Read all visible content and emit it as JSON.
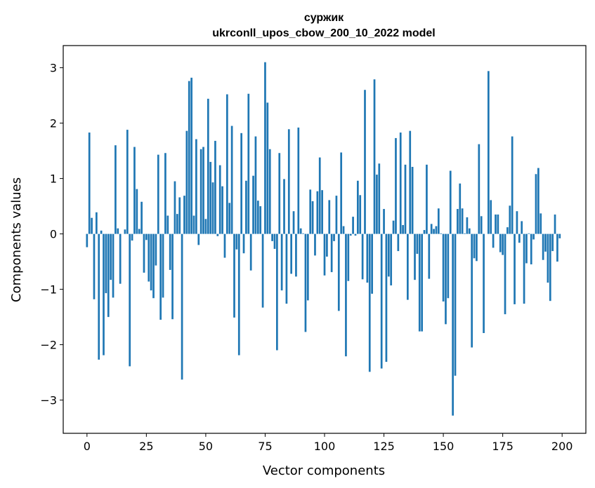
{
  "chart_data": {
    "type": "bar",
    "title": "суржик",
    "subtitle": "ukrconll_upos_cbow_200_10_2022 model",
    "xlabel": "Vector components",
    "ylabel": "Components values",
    "xlim": [
      -10,
      210
    ],
    "ylim": [
      -3.6,
      3.4
    ],
    "xticks": [
      0,
      25,
      50,
      75,
      100,
      125,
      150,
      175,
      200
    ],
    "yticks": [
      3,
      2,
      1,
      0,
      -1,
      -2,
      -3
    ],
    "ytick_labels": [
      "3",
      "2",
      "1",
      "0",
      "−1",
      "−2",
      "−3"
    ],
    "bar_color": "#1f77b4",
    "grid": false,
    "legend": "none",
    "series": [
      {
        "values": [
          -0.24,
          1.83,
          0.29,
          -1.18,
          0.39,
          -2.27,
          0.06,
          -2.19,
          -1.07,
          -1.5,
          -0.83,
          -1.15,
          1.6,
          0.1,
          -0.9,
          0.0,
          0.08,
          1.88,
          -2.39,
          -0.12,
          1.57,
          0.81,
          0.09,
          0.58,
          -0.7,
          -0.11,
          -0.86,
          -1.02,
          -1.16,
          -0.57,
          1.43,
          -1.55,
          -1.15,
          1.46,
          0.33,
          -0.65,
          -1.54,
          0.95,
          0.36,
          0.66,
          -2.63,
          0.69,
          1.86,
          2.76,
          2.82,
          0.33,
          1.71,
          -0.2,
          1.53,
          1.57,
          0.27,
          2.44,
          1.3,
          0.93,
          1.68,
          -0.04,
          1.24,
          0.86,
          -0.43,
          2.52,
          0.56,
          1.95,
          -1.51,
          -0.28,
          -2.19,
          1.82,
          -0.35,
          0.96,
          2.53,
          -0.66,
          1.05,
          1.76,
          0.6,
          0.5,
          -1.33,
          3.1,
          2.37,
          1.53,
          -0.13,
          -0.27,
          -2.1,
          1.46,
          -1.02,
          0.99,
          -1.26,
          1.89,
          -0.72,
          0.41,
          -0.77,
          1.92,
          0.1,
          0.01,
          -1.77,
          -1.2,
          0.8,
          0.59,
          -0.39,
          0.77,
          1.38,
          0.79,
          -0.75,
          -0.41,
          0.61,
          -0.69,
          -0.13,
          0.69,
          -1.39,
          1.47,
          0.14,
          -2.21,
          -0.85,
          -0.03,
          0.31,
          -0.03,
          0.96,
          0.7,
          -0.82,
          2.6,
          -0.88,
          -2.49,
          -1.08,
          2.79,
          1.07,
          1.27,
          -2.43,
          0.45,
          -2.31,
          -0.77,
          -0.93,
          0.24,
          1.73,
          -0.31,
          1.83,
          0.16,
          1.25,
          -1.19,
          1.86,
          1.21,
          -0.83,
          -0.36,
          -1.76,
          -1.76,
          0.07,
          1.25,
          -0.81,
          0.18,
          0.09,
          0.14,
          0.46,
          0.01,
          -1.22,
          -1.63,
          -1.16,
          1.14,
          -3.28,
          -2.56,
          0.45,
          0.91,
          0.46,
          0.01,
          0.3,
          0.1,
          -2.05,
          -0.44,
          -0.49,
          1.62,
          0.32,
          -1.79,
          0.0,
          2.94,
          0.61,
          -0.25,
          0.35,
          0.35,
          -0.33,
          -0.38,
          -1.45,
          0.12,
          0.51,
          1.76,
          -1.27,
          0.41,
          -0.16,
          0.23,
          -1.26,
          -0.53,
          0.01,
          -0.55,
          -0.1,
          1.08,
          1.19,
          0.37,
          -0.47,
          -0.32,
          -0.88,
          -1.21,
          -0.31,
          0.35,
          -0.5,
          -0.08
        ]
      }
    ]
  }
}
